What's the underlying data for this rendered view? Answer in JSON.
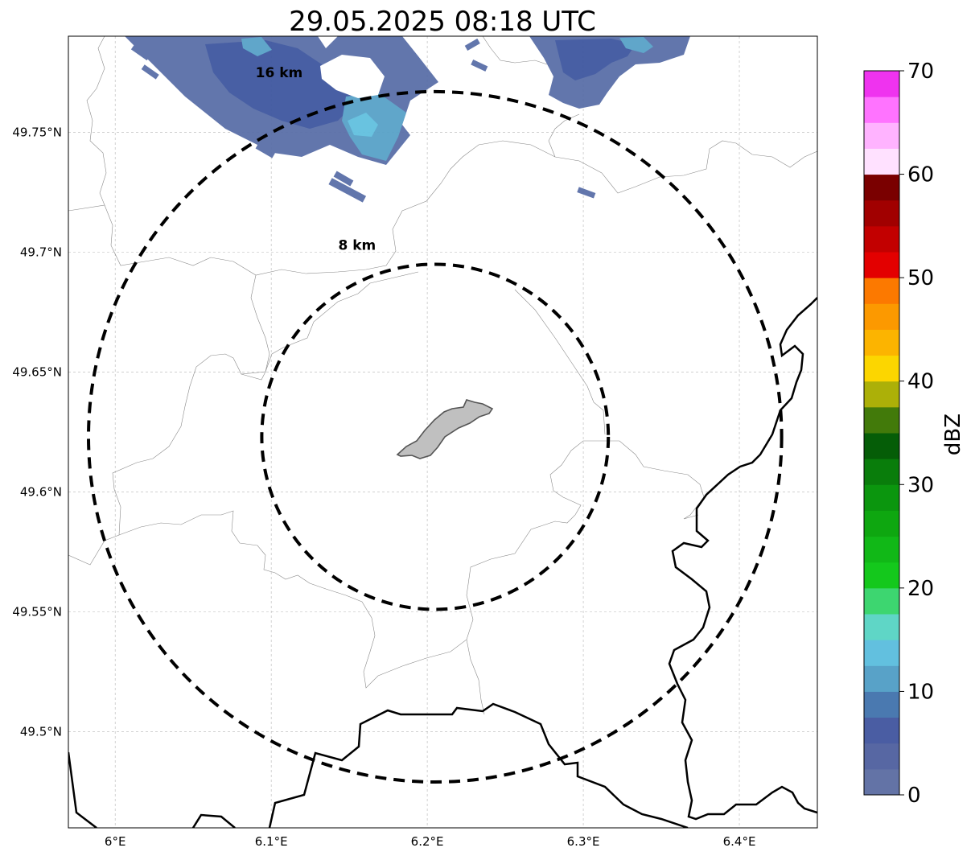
{
  "title": "29.05.2025 08:18 UTC",
  "map": {
    "lon_range": [
      5.97,
      6.45
    ],
    "lat_range": [
      49.46,
      49.79
    ],
    "x_ticks": [
      {
        "value": 6.0,
        "label": "6°E"
      },
      {
        "value": 6.1,
        "label": "6.1°E"
      },
      {
        "value": 6.2,
        "label": "6.2°E"
      },
      {
        "value": 6.3,
        "label": "6.3°E"
      },
      {
        "value": 6.4,
        "label": "6.4°E"
      }
    ],
    "y_ticks": [
      {
        "value": 49.75,
        "label": "49.75°N"
      },
      {
        "value": 49.7,
        "label": "49.7°N"
      },
      {
        "value": 49.65,
        "label": "49.65°N"
      },
      {
        "value": 49.6,
        "label": "49.6°N"
      },
      {
        "value": 49.55,
        "label": "49.55°N"
      },
      {
        "value": 49.5,
        "label": "49.5°N"
      }
    ],
    "gridlines": true,
    "rings": [
      {
        "radius_km": 8,
        "label": "8 km"
      },
      {
        "radius_km": 16,
        "label": "16 km"
      }
    ],
    "ring_style": "black dashed",
    "center_feature_color": "#c0c0c0"
  },
  "colorbar": {
    "label": "dBZ",
    "min": 0,
    "max": 70,
    "tick_values": [
      0,
      10,
      20,
      30,
      40,
      50,
      60,
      70
    ],
    "tick_labels": [
      "0",
      "10",
      "20",
      "30",
      "40",
      "50",
      "60",
      "70"
    ],
    "colors": [
      "#6373a6",
      "#5767a3",
      "#4a5da3",
      "#4a79b0",
      "#58a2c8",
      "#62c0df",
      "#5fd6c6",
      "#3dd670",
      "#14c81c",
      "#11b817",
      "#0ea710",
      "#0b960e",
      "#097d0b",
      "#055d07",
      "#427a0a",
      "#acb008",
      "#fcd600",
      "#fcb400",
      "#fc9900",
      "#fc7900",
      "#e30000",
      "#c20000",
      "#a10000",
      "#7a0000",
      "#ffe1ff",
      "#ffb3ff",
      "#ff73ff",
      "#ef33ef"
    ]
  }
}
